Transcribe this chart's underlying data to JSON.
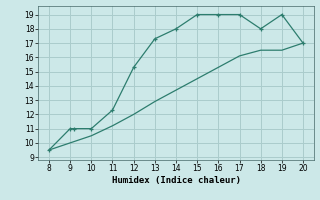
{
  "xlabel": "Humidex (Indice chaleur)",
  "line1_x": [
    8,
    9,
    9.2,
    10,
    11,
    12,
    13,
    14,
    15,
    16,
    17,
    18,
    19,
    20
  ],
  "line1_y": [
    9.5,
    11.0,
    11.0,
    11.0,
    12.3,
    15.3,
    17.3,
    18.0,
    19.0,
    19.0,
    19.0,
    18.0,
    19.0,
    17.0
  ],
  "line2_x": [
    8,
    9,
    10,
    11,
    12,
    13,
    14,
    15,
    16,
    17,
    18,
    19,
    20
  ],
  "line2_y": [
    9.5,
    10.0,
    10.5,
    11.2,
    12.0,
    12.9,
    13.7,
    14.5,
    15.3,
    16.1,
    16.5,
    16.5,
    17.0
  ],
  "line_color": "#2d7d6e",
  "bg_color": "#cce8e8",
  "grid_color": "#aacccc",
  "xlim": [
    7.5,
    20.5
  ],
  "ylim": [
    8.8,
    19.6
  ],
  "xticks": [
    8,
    9,
    10,
    11,
    12,
    13,
    14,
    15,
    16,
    17,
    18,
    19,
    20
  ],
  "yticks": [
    9,
    10,
    11,
    12,
    13,
    14,
    15,
    16,
    17,
    18,
    19
  ]
}
